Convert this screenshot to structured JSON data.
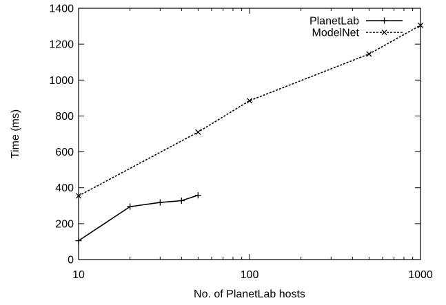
{
  "chart_data": {
    "type": "line",
    "title": "",
    "xlabel": "No. of PlanetLab hosts",
    "ylabel": "Time (ms)",
    "xscale": "log",
    "xlim": [
      10,
      1000
    ],
    "ylim": [
      0,
      1400
    ],
    "x_ticks": [
      10,
      100,
      1000
    ],
    "x_tick_labels": [
      "10",
      "100",
      "1000"
    ],
    "y_ticks": [
      0,
      200,
      400,
      600,
      800,
      1000,
      1200,
      1400
    ],
    "y_tick_labels": [
      "0",
      "200",
      "400",
      "600",
      "800",
      "1000",
      "1200",
      "1400"
    ],
    "grid": false,
    "legend_position": "top-right",
    "series": [
      {
        "name": "PlanetLab",
        "line_style": "solid",
        "marker": "plus",
        "color": "#000000",
        "x": [
          10,
          20,
          30,
          40,
          50
        ],
        "y": [
          105,
          295,
          318,
          328,
          358
        ]
      },
      {
        "name": "ModelNet",
        "line_style": "dashed",
        "marker": "x",
        "color": "#000000",
        "x": [
          10,
          50,
          100,
          500,
          1000
        ],
        "y": [
          355,
          710,
          885,
          1145,
          1305
        ]
      }
    ]
  }
}
